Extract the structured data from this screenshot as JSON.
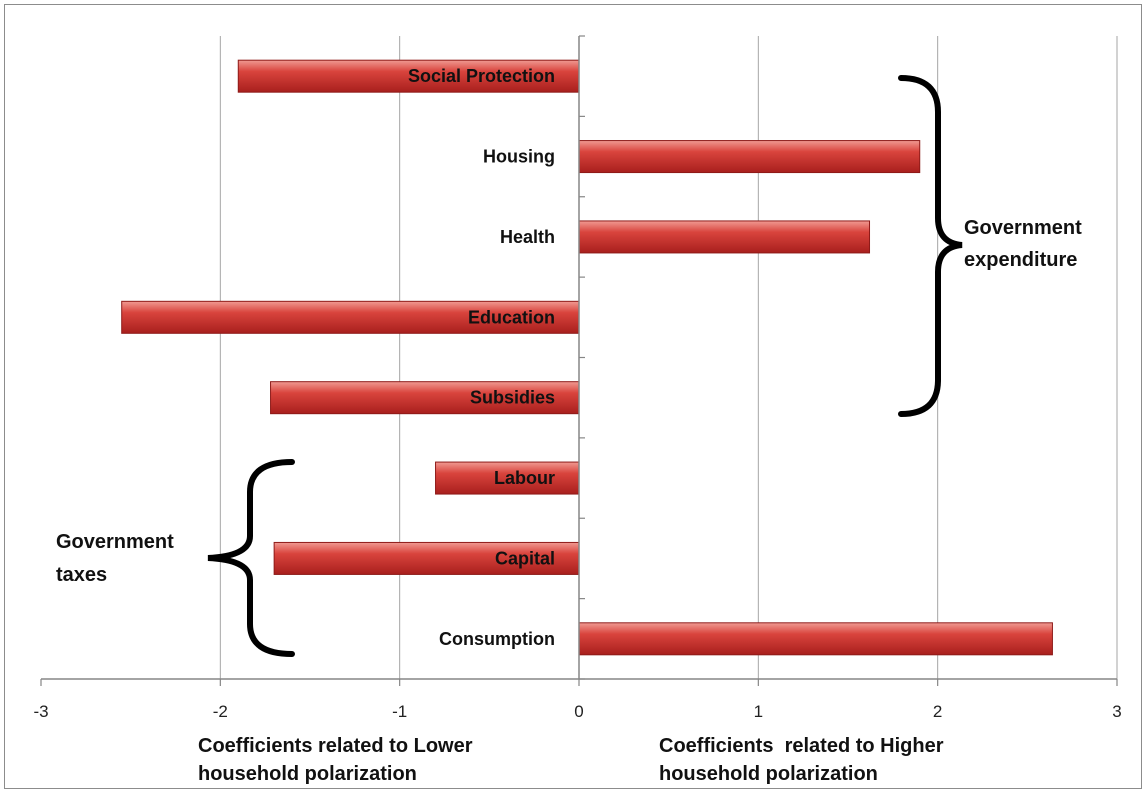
{
  "chart_data": {
    "type": "bar",
    "orientation": "horizontal",
    "categories": [
      "Social Protection",
      "Housing",
      "Health",
      "Education",
      "Subsidies",
      "Labour",
      "Capital",
      "Consumption"
    ],
    "values": [
      -1.9,
      1.9,
      1.62,
      -2.55,
      -1.72,
      -0.8,
      -1.7,
      2.64
    ],
    "xlim": [
      -3,
      3
    ],
    "xticks": [
      "-3",
      "-2",
      "-1",
      "0",
      "1",
      "2",
      "3"
    ],
    "grid": "vertical",
    "bar_color": "#c0302c",
    "xlabel_left": [
      "Coefficients related to Lower",
      "household polarization"
    ],
    "xlabel_right": [
      "Coefficients  related to Higher",
      "household polarization"
    ],
    "groups": [
      {
        "name": [
          "Government",
          "expenditure"
        ],
        "members": [
          "Social Protection",
          "Housing",
          "Health",
          "Education",
          "Subsidies"
        ]
      },
      {
        "name": [
          "Government",
          "taxes"
        ],
        "members": [
          "Labour",
          "Capital",
          "Consumption"
        ]
      }
    ]
  }
}
